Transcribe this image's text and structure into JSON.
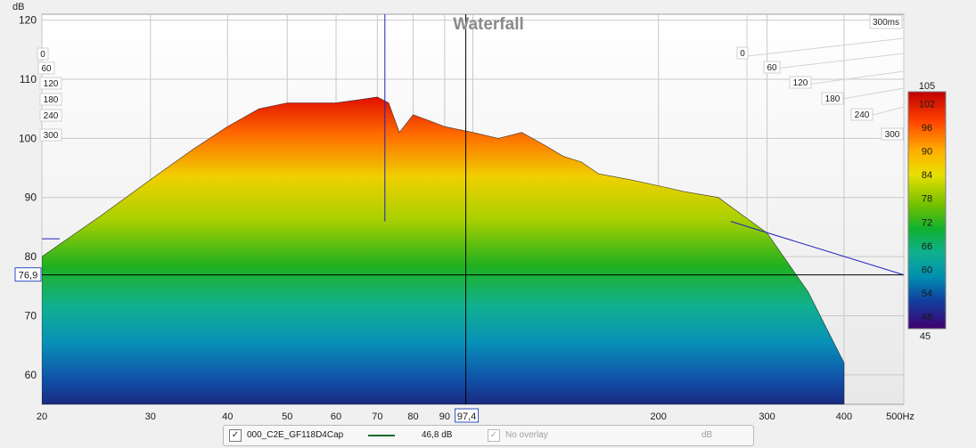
{
  "chart_data": {
    "type": "waterfall",
    "title": "Waterfall",
    "ylabel": "dB",
    "time_label": "300ms",
    "x_ticks": [
      "20",
      "30",
      "40",
      "50",
      "60",
      "70",
      "80",
      "90",
      "200",
      "300",
      "400",
      "500Hz"
    ],
    "x_tick_values": [
      20,
      30,
      40,
      50,
      60,
      70,
      80,
      90,
      200,
      300,
      400,
      500
    ],
    "y_ticks": [
      60,
      70,
      80,
      90,
      100,
      110,
      120
    ],
    "xlim": [
      20,
      500
    ],
    "ylim": [
      55,
      121
    ],
    "x_scale": "log",
    "time_ticks": [
      "0",
      "60",
      "120",
      "180",
      "240",
      "300"
    ],
    "time_ticks_left": [
      "0",
      "60",
      "120",
      "180",
      "240",
      "300"
    ],
    "cursor": {
      "x_readout": "97,4",
      "y_readout": "76,9"
    },
    "colorbar": {
      "ticks": [
        102,
        96,
        90,
        84,
        78,
        72,
        66,
        60,
        54,
        48
      ],
      "top": "105",
      "bottom": "45",
      "range": [
        45,
        105
      ]
    },
    "series": [
      {
        "name": "000_C2E_GF118D4Cap",
        "x": [
          20,
          25,
          30,
          35,
          40,
          45,
          50,
          55,
          60,
          65,
          70,
          73,
          76,
          80,
          85,
          90,
          100,
          110,
          120,
          130,
          140,
          150,
          160,
          180,
          200,
          220,
          250,
          300,
          350,
          400
        ],
        "values": [
          80,
          87,
          93,
          98,
          102,
          105,
          106,
          106,
          106,
          106.5,
          107,
          106,
          101,
          104,
          103,
          102,
          101,
          100,
          101,
          99,
          97,
          96,
          94,
          93,
          92,
          91,
          90,
          84,
          74,
          62
        ]
      }
    ]
  },
  "legend": {
    "item_checked": "✓",
    "item_name": "000_C2E_GF118D4Cap",
    "item_value": "46,8 dB",
    "overlay_label": "No overlay",
    "overlay_unit": "dB",
    "line_color": "#0b6a2a"
  }
}
